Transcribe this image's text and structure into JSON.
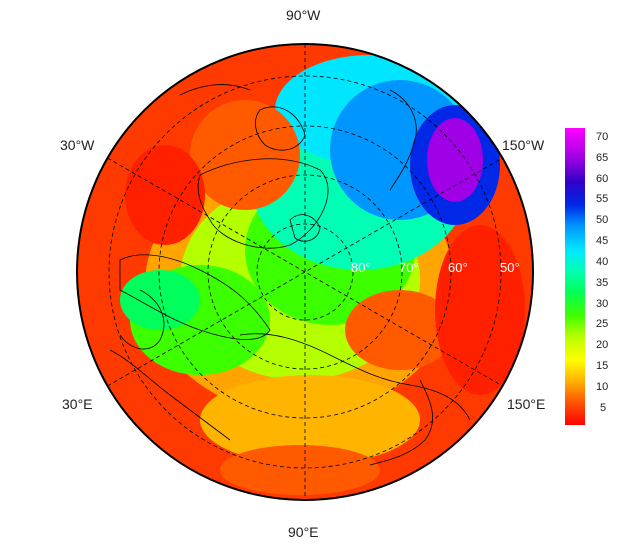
{
  "map": {
    "projection": "north-polar-stereographic",
    "longitude_labels": {
      "top": "90°W",
      "bottom": "90°E",
      "left_upper": "30°W",
      "left_lower": "30°E",
      "right_upper": "150°W",
      "right_lower": "150°E"
    },
    "latitude_labels": [
      "80°",
      "70°",
      "60°",
      "50°"
    ],
    "colors": {
      "boundary": "#000000",
      "graticule": "#000000",
      "latitude_label": "#ffffff"
    }
  },
  "colorbar": {
    "ticks": [
      "70",
      "65",
      "60",
      "55",
      "50",
      "45",
      "40",
      "35",
      "30",
      "25",
      "20",
      "15",
      "10",
      "5"
    ],
    "range": [
      2,
      73
    ],
    "colors": [
      "#ff0000",
      "#ff5a00",
      "#ffb400",
      "#ffff00",
      "#b4ff00",
      "#3cff00",
      "#00ff5a",
      "#00ffb4",
      "#00e6ff",
      "#0096ff",
      "#0028e6",
      "#3200c8",
      "#a000e6",
      "#ff00ff"
    ]
  }
}
